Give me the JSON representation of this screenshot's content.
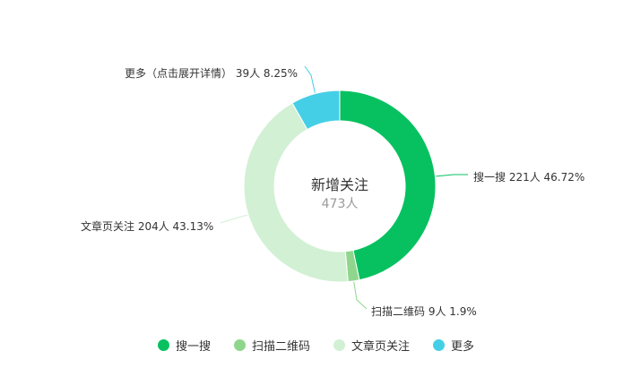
{
  "chart_data": {
    "type": "pie",
    "variant": "donut",
    "center": {
      "title": "新增关注",
      "value": "473人"
    },
    "slices": [
      {
        "name": "搜一搜",
        "value": 221,
        "percent": 46.72,
        "label": "搜一搜 221人 46.72%",
        "color": "#07c160"
      },
      {
        "name": "扫描二维码",
        "value": 9,
        "percent": 1.9,
        "label": "扫描二维码 9人 1.9%",
        "color": "#8fd68c"
      },
      {
        "name": "文章页关注",
        "value": 204,
        "percent": 43.13,
        "label": "文章页关注 204人 43.13%",
        "color": "#d2f0d4"
      },
      {
        "name": "更多",
        "value": 39,
        "percent": 8.25,
        "label": "更多（点击展开详情） 39人 8.25%",
        "color": "#45cfe6"
      }
    ],
    "legend": {
      "placement": "bottom-center"
    }
  }
}
